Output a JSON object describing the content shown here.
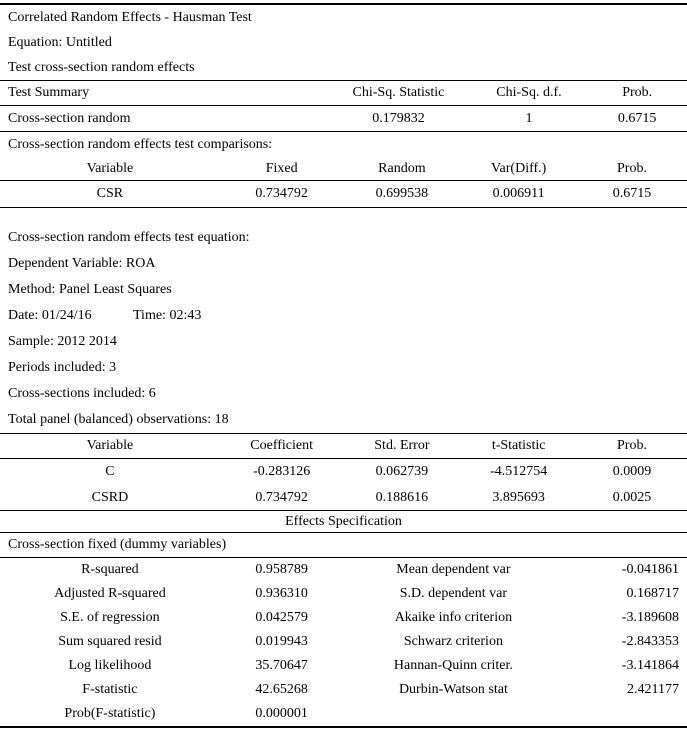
{
  "preamble": {
    "line1": "Correlated Random Effects - Hausman Test",
    "line2": "Equation: Untitled",
    "line3": "Test cross-section random effects"
  },
  "test_summary": {
    "headers": [
      "Test Summary",
      "Chi-Sq. Statistic",
      "Chi-Sq. d.f.",
      "Prob."
    ],
    "rows": [
      [
        "Cross-section random",
        "0.179832",
        "1",
        "0.6715"
      ]
    ]
  },
  "comparisons": {
    "title": "Cross-section random effects test comparisons:",
    "headers": [
      "Variable",
      "Fixed",
      "Random",
      "Var(Diff.)",
      "Prob."
    ],
    "rows": [
      [
        "CSR",
        "0.734792",
        "0.699538",
        "0.006911",
        "0.6715"
      ]
    ]
  },
  "equation_info": {
    "title": "Cross-section random effects test equation:",
    "dependent": "Dependent Variable: ROA",
    "method": "Method: Panel Least Squares",
    "date": "Date: 01/24/16",
    "time": "Time: 02:43",
    "sample": "Sample: 2012 2014",
    "periods": "Periods included: 3",
    "cross_sections": "Cross-sections included: 6",
    "observations": "Total panel (balanced) observations: 18"
  },
  "coefficients": {
    "headers": [
      "Variable",
      "Coefficient",
      "Std. Error",
      "t-Statistic",
      "Prob."
    ],
    "rows": [
      [
        "C",
        "-0.283126",
        "0.062739",
        "-4.512754",
        "0.0009"
      ],
      [
        "CSRD",
        "0.734792",
        "0.188616",
        "3.895693",
        "0.0025"
      ]
    ]
  },
  "effects": {
    "title": "Effects Specification",
    "note": "Cross-section fixed (dummy variables)"
  },
  "summary_stats": {
    "rows": [
      [
        "R-squared",
        "0.958789",
        "Mean dependent var",
        "-0.041861"
      ],
      [
        "Adjusted R-squared",
        "0.936310",
        "S.D. dependent var",
        "0.168717"
      ],
      [
        "S.E. of regression",
        "0.042579",
        "Akaike info criterion",
        "-3.189608"
      ],
      [
        "Sum squared resid",
        "0.019943",
        "Schwarz criterion",
        "-2.843353"
      ],
      [
        "Log likelihood",
        "35.70647",
        "Hannan-Quinn criter.",
        "-3.141864"
      ],
      [
        "F-statistic",
        "42.65268",
        "Durbin-Watson stat",
        "2.421177"
      ],
      [
        "Prob(F-statistic)",
        "0.000001",
        "",
        ""
      ]
    ]
  },
  "colors": {
    "background": "#ffffff",
    "text": "#000000",
    "rule": "#000000"
  }
}
